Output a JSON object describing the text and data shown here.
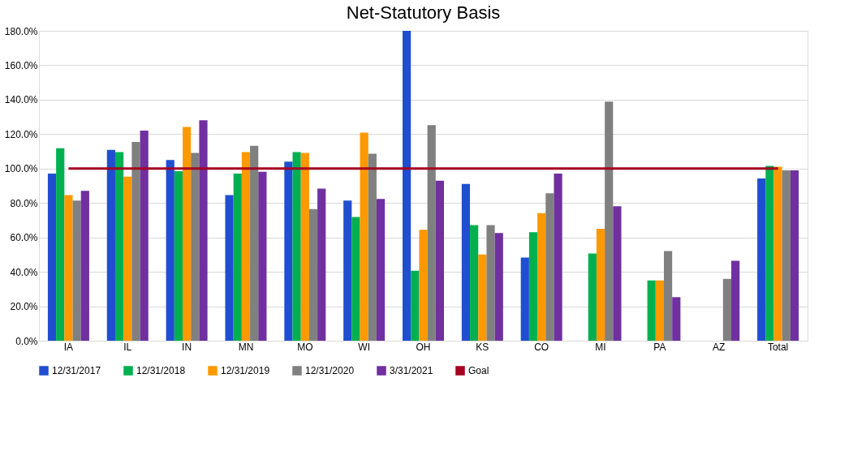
{
  "chart_data": {
    "type": "bar",
    "title": "Net-Statutory Basis",
    "categories": [
      "IA",
      "IL",
      "IN",
      "MN",
      "MO",
      "WI",
      "OH",
      "KS",
      "CO",
      "MI",
      "PA",
      "AZ",
      "Total"
    ],
    "series": [
      {
        "name": "12/31/2017",
        "color": "#1f4fd0",
        "values": [
          97.1,
          110.9,
          105.0,
          84.6,
          104.0,
          81.4,
          180,
          91.1,
          48.3,
          null,
          null,
          null,
          94.2
        ]
      },
      {
        "name": "12/31/2018",
        "color": "#00b050",
        "values": [
          111.8,
          109.6,
          98.5,
          97.1,
          109.6,
          71.9,
          40.6,
          67.2,
          63.0,
          50.6,
          35.0,
          null,
          101.5
        ]
      },
      {
        "name": "12/31/2019",
        "color": "#ff9900",
        "values": [
          84.6,
          95.3,
          124.2,
          109.6,
          109.1,
          120.9,
          64.4,
          50.1,
          74.1,
          65.0,
          35.0,
          null,
          101.1
        ]
      },
      {
        "name": "12/31/2020",
        "color": "#808080",
        "values": [
          81.4,
          115.5,
          109.1,
          113.2,
          76.5,
          108.6,
          125.2,
          67.2,
          85.6,
          138.9,
          52.1,
          35.9,
          98.9
        ]
      },
      {
        "name": "3/31/2021",
        "color": "#7030a0",
        "values": [
          87.0,
          122.0,
          128.0,
          98.1,
          88.4,
          82.4,
          92.9,
          62.6,
          97.1,
          78.1,
          25.3,
          46.4,
          98.9
        ]
      },
      {
        "name": "Goal",
        "type": "line",
        "color": "#a50021",
        "values": [
          100,
          100,
          100,
          100,
          100,
          100,
          100,
          100,
          100,
          100,
          100,
          100,
          100
        ]
      }
    ],
    "ylim": [
      0,
      180
    ],
    "yticks": [
      {
        "value": 0,
        "label": "0.0%"
      },
      {
        "value": 20,
        "label": "20.0%"
      },
      {
        "value": 40,
        "label": "40.0%"
      },
      {
        "value": 60,
        "label": "60.0%"
      },
      {
        "value": 80,
        "label": "80.0%"
      },
      {
        "value": 100,
        "label": "100.0%"
      },
      {
        "value": 120,
        "label": "120.0%"
      },
      {
        "value": 140,
        "label": "140.0%"
      },
      {
        "value": 160,
        "label": "160.0%"
      },
      {
        "value": 180,
        "label": "180.0%"
      }
    ],
    "grid": "y",
    "legend": "bottom",
    "marker": "none"
  }
}
